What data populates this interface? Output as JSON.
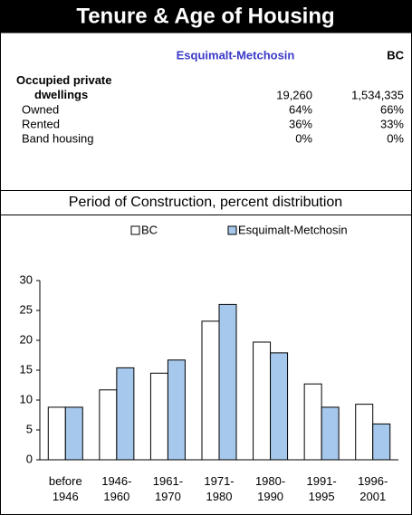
{
  "header": {
    "title": "Tenure & Age of Housing"
  },
  "table": {
    "columns": [
      "Esquimalt-Metchosin",
      "BC"
    ],
    "rows": [
      {
        "label": "Occupied private dwellings",
        "values": [
          "19,260",
          "1,534,335"
        ]
      },
      {
        "label": "Owned",
        "values": [
          "64%",
          "66%"
        ]
      },
      {
        "label": "Rented",
        "values": [
          "36%",
          "33%"
        ]
      },
      {
        "label": "Band housing",
        "values": [
          "0%",
          "0%"
        ]
      }
    ]
  },
  "chart_data": {
    "type": "bar",
    "title": "Period of Construction, percent distribution",
    "categories": [
      "before 1946",
      "1946-1960",
      "1961-1970",
      "1971-1980",
      "1980-1990",
      "1991-1995",
      "1996-2001"
    ],
    "series": [
      {
        "name": "BC",
        "color": "#ffffff",
        "values": [
          8.8,
          11.7,
          14.5,
          23.2,
          19.7,
          12.7,
          9.3
        ]
      },
      {
        "name": "Esquimalt-Metchosin",
        "color": "#a6c8ec",
        "values": [
          8.8,
          15.4,
          16.7,
          26,
          17.9,
          8.8,
          6.0
        ]
      }
    ],
    "ylim": [
      0,
      30
    ],
    "yticks": [
      0,
      5,
      10,
      15,
      20,
      25,
      30
    ],
    "grid": false,
    "legend": "top"
  }
}
